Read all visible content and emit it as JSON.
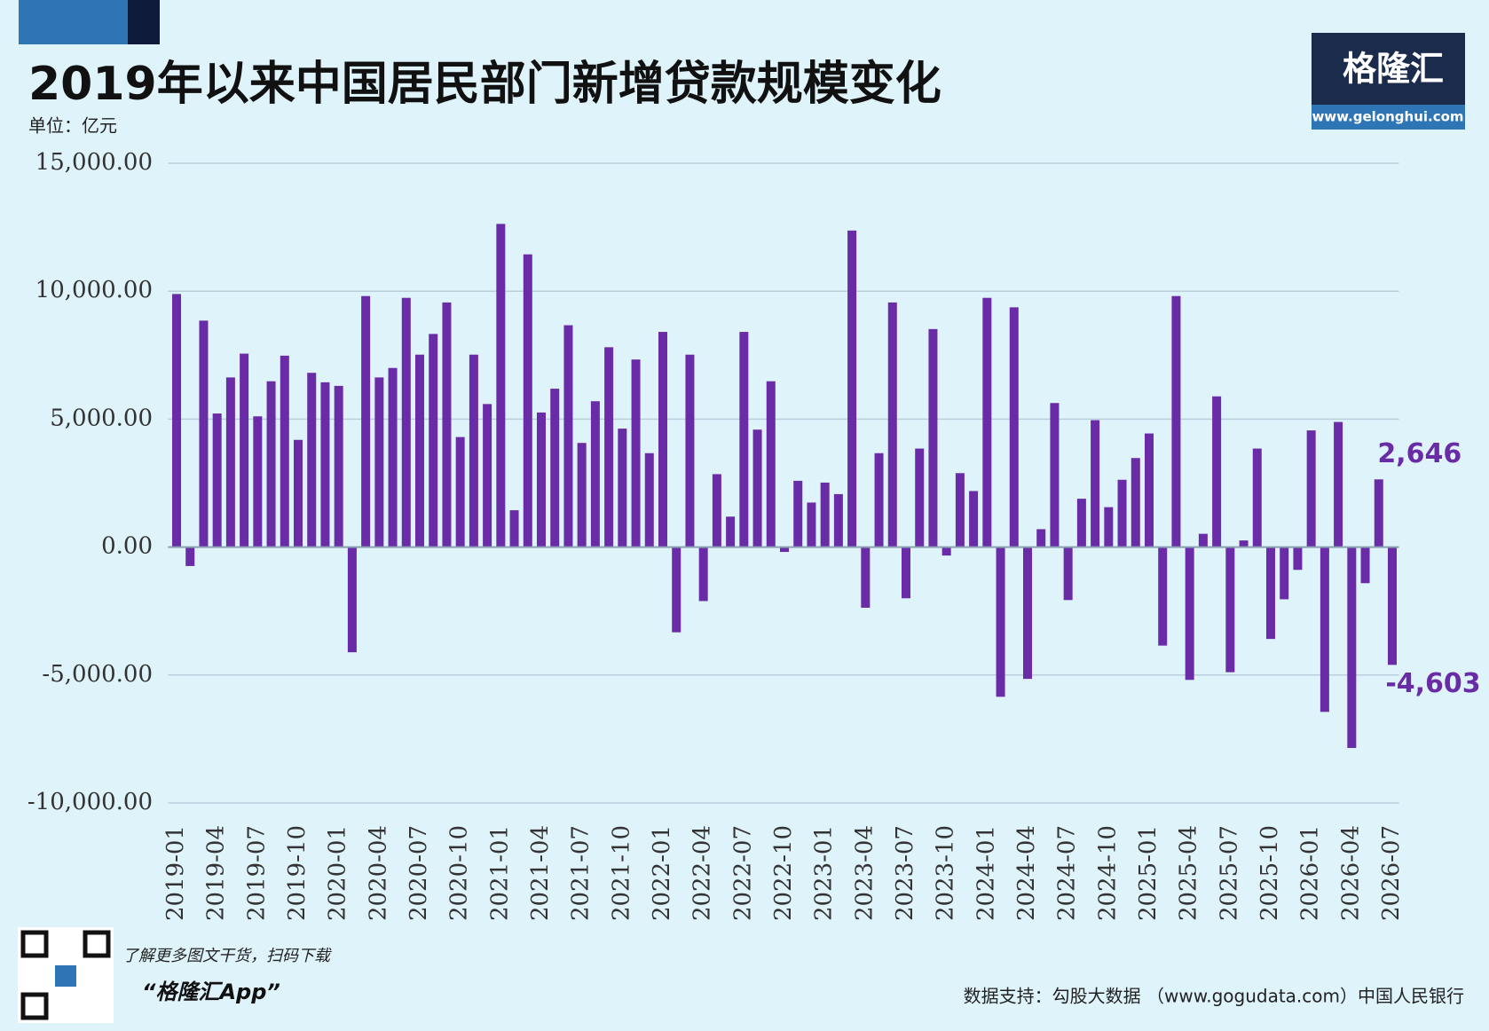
{
  "header": {
    "logo": "格隆汇",
    "logo_url": "www.gelonghui.com"
  },
  "footer": {
    "promo": "了解更多图文干货，扫码下载",
    "app": "“格隆汇App”",
    "source": "数据支持：勾股大数据 （www.gogudata.com）中国人民银行"
  },
  "chart_data": {
    "type": "bar",
    "title": "2019年以来中国居民部门新增贷款规模变化",
    "subtitle": "单位：亿元",
    "color": "#6a2ca6",
    "grid": true,
    "categories": [
      "2019-01",
      null,
      null,
      "2019-04",
      null,
      null,
      "2019-07",
      null,
      null,
      "2019-10",
      null,
      null,
      "2020-01",
      null,
      null,
      "2020-04",
      null,
      null,
      "2020-07",
      null,
      null,
      "2020-10",
      null,
      null,
      "2021-01",
      null,
      null,
      "2021-04",
      null,
      null,
      "2021-07",
      null,
      null,
      "2021-10",
      null,
      null,
      "2022-01",
      null,
      null,
      "2022-04",
      null,
      null,
      "2022-07",
      null,
      null,
      "2022-10",
      null,
      null,
      "2023-01",
      null,
      null,
      "2023-04",
      null,
      null,
      "2023-07",
      null,
      null,
      "2023-10",
      null,
      null,
      "2024-01",
      null,
      null,
      "2024-04",
      null,
      null,
      "2024-07",
      null,
      null,
      "2024-10",
      null,
      null,
      "2025-01",
      null,
      null,
      "2025-04",
      null,
      null,
      "2025-07",
      null,
      null,
      "2025-10",
      null,
      null,
      "2026-01",
      null,
      null,
      "2026-04",
      null,
      null,
      "2026-07"
    ],
    "values": [
      9890,
      -740,
      8850,
      5220,
      6630,
      7560,
      5110,
      6480,
      7480,
      4190,
      6810,
      6440,
      6300,
      -4110,
      9810,
      6630,
      7000,
      9740,
      7520,
      8330,
      9560,
      4300,
      7520,
      5590,
      12630,
      1440,
      11440,
      5260,
      6190,
      8670,
      4070,
      5700,
      7810,
      4630,
      7330,
      3670,
      8410,
      -3330,
      7520,
      -2110,
      2850,
      1190,
      8410,
      4590,
      6480,
      -190,
      2590,
      1740,
      2520,
      2070,
      12370,
      -2370,
      3670,
      9560,
      -2000,
      3850,
      8520,
      -330,
      2890,
      2190,
      9740,
      -5850,
      9370,
      -5150,
      700,
      5630,
      -2070,
      1890,
      4960,
      1560,
      2630,
      3480,
      4440,
      -3850,
      9810,
      -5190,
      520,
      5890,
      -4890,
      260,
      3850,
      -3590,
      -2040,
      -890,
      4560,
      -6440,
      4890,
      -7850,
      -1410,
      2646,
      -4603
    ],
    "value_labels": [
      null,
      null,
      null,
      null,
      null,
      null,
      null,
      null,
      null,
      null,
      null,
      null,
      null,
      null,
      null,
      null,
      null,
      null,
      null,
      null,
      null,
      null,
      null,
      null,
      null,
      null,
      null,
      null,
      null,
      null,
      null,
      null,
      null,
      null,
      null,
      null,
      null,
      null,
      null,
      null,
      null,
      null,
      null,
      null,
      null,
      null,
      null,
      null,
      null,
      null,
      null,
      null,
      null,
      null,
      null,
      null,
      null,
      null,
      null,
      null,
      null,
      null,
      null,
      null,
      null,
      null,
      null,
      null,
      null,
      null,
      null,
      null,
      null,
      null,
      null,
      null,
      null,
      null,
      null,
      null,
      null,
      null,
      null,
      null,
      null,
      null,
      null,
      null,
      null,
      "2,646",
      "-4,603"
    ],
    "ylim": [
      -10000,
      15000
    ],
    "yticks": [
      {
        "value": -10000,
        "label": "-10,000.00"
      },
      {
        "value": -5000,
        "label": "-5,000.00"
      },
      {
        "value": 0,
        "label": "0.00"
      },
      {
        "value": 5000,
        "label": "5,000.00"
      },
      {
        "value": 10000,
        "label": "10,000.00"
      },
      {
        "value": 15000,
        "label": "15,000.00"
      }
    ]
  }
}
